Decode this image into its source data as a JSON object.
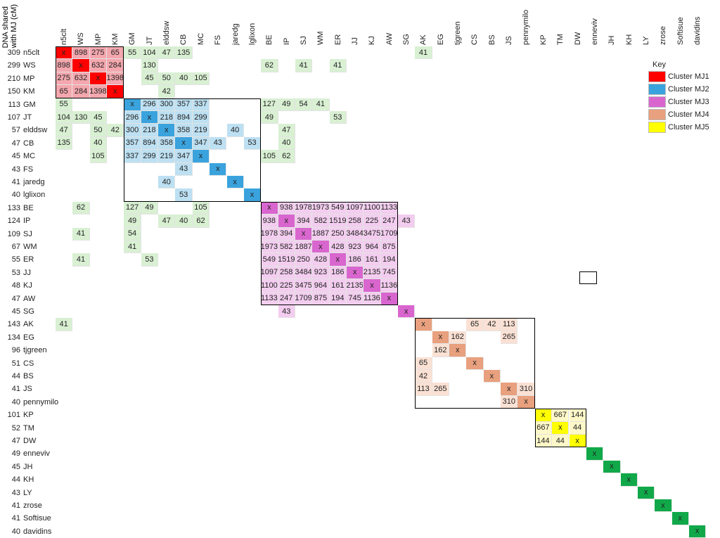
{
  "header_label": "DNA shared\nwith MJ (cM)",
  "columns": [
    "n5clt",
    "WS",
    "MP",
    "KM",
    "GM",
    "JT",
    "elddsw",
    "CB",
    "MC",
    "FS",
    "jaredg",
    "lglixon",
    "BE",
    "IP",
    "SJ",
    "WM",
    "ER",
    "JJ",
    "KJ",
    "AW",
    "SG",
    "AK",
    "EG",
    "tjgreen",
    "CS",
    "BS",
    "JS",
    "pennymilo",
    "KP",
    "TM",
    "DW",
    "enneviv",
    "JH",
    "KH",
    "LY",
    "zrose",
    "Softisue",
    "davidins"
  ],
  "rows": [
    {
      "cm": "309",
      "name": "n5clt"
    },
    {
      "cm": "299",
      "name": "WS"
    },
    {
      "cm": "210",
      "name": "MP"
    },
    {
      "cm": "150",
      "name": "KM"
    },
    {
      "cm": "113",
      "name": "GM"
    },
    {
      "cm": "107",
      "name": "JT"
    },
    {
      "cm": "57",
      "name": "elddsw"
    },
    {
      "cm": "47",
      "name": "CB"
    },
    {
      "cm": "45",
      "name": "MC"
    },
    {
      "cm": "43",
      "name": "FS"
    },
    {
      "cm": "41",
      "name": "jaredg"
    },
    {
      "cm": "40",
      "name": "lglixon"
    },
    {
      "cm": "133",
      "name": "BE"
    },
    {
      "cm": "124",
      "name": "IP"
    },
    {
      "cm": "109",
      "name": "SJ"
    },
    {
      "cm": "67",
      "name": "WM"
    },
    {
      "cm": "55",
      "name": "ER"
    },
    {
      "cm": "53",
      "name": "JJ"
    },
    {
      "cm": "48",
      "name": "KJ"
    },
    {
      "cm": "47",
      "name": "AW"
    },
    {
      "cm": "45",
      "name": "SG"
    },
    {
      "cm": "143",
      "name": "AK"
    },
    {
      "cm": "134",
      "name": "EG"
    },
    {
      "cm": "96",
      "name": "tjgreen"
    },
    {
      "cm": "51",
      "name": "CS"
    },
    {
      "cm": "44",
      "name": "BS"
    },
    {
      "cm": "41",
      "name": "JS"
    },
    {
      "cm": "40",
      "name": "pennymilo"
    },
    {
      "cm": "101",
      "name": "KP"
    },
    {
      "cm": "52",
      "name": "TM"
    },
    {
      "cm": "47",
      "name": "DW"
    },
    {
      "cm": "49",
      "name": "enneviv"
    },
    {
      "cm": "45",
      "name": "JH"
    },
    {
      "cm": "44",
      "name": "KH"
    },
    {
      "cm": "43",
      "name": "LY"
    },
    {
      "cm": "41",
      "name": "zrose"
    },
    {
      "cm": "41",
      "name": "Softisue"
    },
    {
      "cm": "40",
      "name": "davidins"
    }
  ],
  "colors": {
    "mj1_diag": "#ff0000",
    "mj1_fill": "#f4a7ae",
    "mj2_diag": "#3aa3dd",
    "mj2_fill": "#bde0f2",
    "mj3_diag": "#d966cf",
    "mj3_fill": "#f3cdef",
    "mj4_diag": "#e8a07e",
    "mj4_fill": "#fbe1d4",
    "mj5_diag": "#ffff00",
    "mj5_fill": "#fff8c8",
    "cross": "#d9f0d3",
    "solo_diag": "#11a84a"
  },
  "cells": [
    {
      "r": 0,
      "c": 0,
      "v": "x",
      "t": "mj1_diag"
    },
    {
      "r": 0,
      "c": 1,
      "v": "898",
      "t": "mj1_fill"
    },
    {
      "r": 0,
      "c": 2,
      "v": "275",
      "t": "mj1_fill"
    },
    {
      "r": 0,
      "c": 3,
      "v": "65",
      "t": "mj1_fill"
    },
    {
      "r": 0,
      "c": 4,
      "v": "55",
      "t": "cross"
    },
    {
      "r": 0,
      "c": 5,
      "v": "104",
      "t": "cross"
    },
    {
      "r": 0,
      "c": 6,
      "v": "47",
      "t": "cross"
    },
    {
      "r": 0,
      "c": 7,
      "v": "135",
      "t": "cross"
    },
    {
      "r": 0,
      "c": 21,
      "v": "41",
      "t": "cross"
    },
    {
      "r": 1,
      "c": 0,
      "v": "898",
      "t": "mj1_fill"
    },
    {
      "r": 1,
      "c": 1,
      "v": "x",
      "t": "mj1_diag"
    },
    {
      "r": 1,
      "c": 2,
      "v": "632",
      "t": "mj1_fill"
    },
    {
      "r": 1,
      "c": 3,
      "v": "284",
      "t": "mj1_fill"
    },
    {
      "r": 1,
      "c": 12,
      "v": "62",
      "t": "cross"
    },
    {
      "r": 1,
      "c": 14,
      "v": "41",
      "t": "cross"
    },
    {
      "r": 1,
      "c": 16,
      "v": "41",
      "t": "cross"
    },
    {
      "r": 2,
      "c": 0,
      "v": "275",
      "t": "mj1_fill"
    },
    {
      "r": 2,
      "c": 1,
      "v": "632",
      "t": "mj1_fill"
    },
    {
      "r": 2,
      "c": 2,
      "v": "x",
      "t": "mj1_diag"
    },
    {
      "r": 2,
      "c": 3,
      "v": "1398",
      "t": "mj1_fill"
    },
    {
      "r": 2,
      "c": 5,
      "v": "45",
      "t": "cross"
    },
    {
      "r": 2,
      "c": 6,
      "v": "50",
      "t": "cross"
    },
    {
      "r": 2,
      "c": 7,
      "v": "40",
      "t": "cross"
    },
    {
      "r": 2,
      "c": 8,
      "v": "105",
      "t": "cross"
    },
    {
      "r": 3,
      "c": 0,
      "v": "65",
      "t": "mj1_fill"
    },
    {
      "r": 3,
      "c": 1,
      "v": "284",
      "t": "mj1_fill"
    },
    {
      "r": 3,
      "c": 2,
      "v": "1398",
      "t": "mj1_fill"
    },
    {
      "r": 3,
      "c": 3,
      "v": "x",
      "t": "mj1_diag"
    },
    {
      "r": 3,
      "c": 6,
      "v": "42",
      "t": "cross"
    },
    {
      "r": 0,
      "c": 5,
      "v": "104",
      "t": "cross"
    },
    {
      "r": 1,
      "c": 5,
      "v": "130",
      "t": "cross"
    },
    {
      "r": 4,
      "c": 0,
      "v": "55",
      "t": "cross"
    },
    {
      "r": 4,
      "c": 4,
      "v": "x",
      "t": "mj2_diag"
    },
    {
      "r": 4,
      "c": 5,
      "v": "296",
      "t": "mj2_fill"
    },
    {
      "r": 4,
      "c": 6,
      "v": "300",
      "t": "mj2_fill"
    },
    {
      "r": 4,
      "c": 7,
      "v": "357",
      "t": "mj2_fill"
    },
    {
      "r": 4,
      "c": 8,
      "v": "337",
      "t": "mj2_fill"
    },
    {
      "r": 4,
      "c": 12,
      "v": "127",
      "t": "cross"
    },
    {
      "r": 4,
      "c": 13,
      "v": "49",
      "t": "cross"
    },
    {
      "r": 4,
      "c": 14,
      "v": "54",
      "t": "cross"
    },
    {
      "r": 4,
      "c": 15,
      "v": "41",
      "t": "cross"
    },
    {
      "r": 5,
      "c": 0,
      "v": "104",
      "t": "cross"
    },
    {
      "r": 5,
      "c": 1,
      "v": "130",
      "t": "cross"
    },
    {
      "r": 5,
      "c": 2,
      "v": "45",
      "t": "cross"
    },
    {
      "r": 5,
      "c": 4,
      "v": "296",
      "t": "mj2_fill"
    },
    {
      "r": 5,
      "c": 5,
      "v": "x",
      "t": "mj2_diag"
    },
    {
      "r": 5,
      "c": 6,
      "v": "218",
      "t": "mj2_fill"
    },
    {
      "r": 5,
      "c": 7,
      "v": "894",
      "t": "mj2_fill"
    },
    {
      "r": 5,
      "c": 8,
      "v": "299",
      "t": "mj2_fill"
    },
    {
      "r": 5,
      "c": 12,
      "v": "49",
      "t": "cross"
    },
    {
      "r": 5,
      "c": 16,
      "v": "53",
      "t": "cross"
    },
    {
      "r": 6,
      "c": 0,
      "v": "47",
      "t": "cross"
    },
    {
      "r": 6,
      "c": 2,
      "v": "50",
      "t": "cross"
    },
    {
      "r": 6,
      "c": 3,
      "v": "42",
      "t": "cross"
    },
    {
      "r": 6,
      "c": 4,
      "v": "300",
      "t": "mj2_fill"
    },
    {
      "r": 6,
      "c": 5,
      "v": "218",
      "t": "mj2_fill"
    },
    {
      "r": 6,
      "c": 6,
      "v": "x",
      "t": "mj2_diag"
    },
    {
      "r": 6,
      "c": 7,
      "v": "358",
      "t": "mj2_fill"
    },
    {
      "r": 6,
      "c": 8,
      "v": "219",
      "t": "mj2_fill"
    },
    {
      "r": 6,
      "c": 10,
      "v": "40",
      "t": "mj2_fill"
    },
    {
      "r": 6,
      "c": 13,
      "v": "47",
      "t": "cross"
    },
    {
      "r": 7,
      "c": 0,
      "v": "135",
      "t": "cross"
    },
    {
      "r": 7,
      "c": 2,
      "v": "40",
      "t": "cross"
    },
    {
      "r": 7,
      "c": 4,
      "v": "357",
      "t": "mj2_fill"
    },
    {
      "r": 7,
      "c": 5,
      "v": "894",
      "t": "mj2_fill"
    },
    {
      "r": 7,
      "c": 6,
      "v": "358",
      "t": "mj2_fill"
    },
    {
      "r": 7,
      "c": 7,
      "v": "x",
      "t": "mj2_diag"
    },
    {
      "r": 7,
      "c": 8,
      "v": "347",
      "t": "mj2_fill"
    },
    {
      "r": 7,
      "c": 9,
      "v": "43",
      "t": "mj2_fill"
    },
    {
      "r": 7,
      "c": 11,
      "v": "53",
      "t": "mj2_fill"
    },
    {
      "r": 7,
      "c": 13,
      "v": "40",
      "t": "cross"
    },
    {
      "r": 8,
      "c": 2,
      "v": "105",
      "t": "cross"
    },
    {
      "r": 8,
      "c": 4,
      "v": "337",
      "t": "mj2_fill"
    },
    {
      "r": 8,
      "c": 5,
      "v": "299",
      "t": "mj2_fill"
    },
    {
      "r": 8,
      "c": 6,
      "v": "219",
      "t": "mj2_fill"
    },
    {
      "r": 8,
      "c": 7,
      "v": "347",
      "t": "mj2_fill"
    },
    {
      "r": 8,
      "c": 8,
      "v": "x",
      "t": "mj2_diag"
    },
    {
      "r": 8,
      "c": 12,
      "v": "105",
      "t": "cross"
    },
    {
      "r": 8,
      "c": 13,
      "v": "62",
      "t": "cross"
    },
    {
      "r": 9,
      "c": 7,
      "v": "43",
      "t": "mj2_fill"
    },
    {
      "r": 9,
      "c": 9,
      "v": "x",
      "t": "mj2_diag"
    },
    {
      "r": 10,
      "c": 6,
      "v": "40",
      "t": "mj2_fill"
    },
    {
      "r": 10,
      "c": 10,
      "v": "x",
      "t": "mj2_diag"
    },
    {
      "r": 11,
      "c": 7,
      "v": "53",
      "t": "mj2_fill"
    },
    {
      "r": 11,
      "c": 11,
      "v": "x",
      "t": "mj2_diag"
    },
    {
      "r": 12,
      "c": 1,
      "v": "62",
      "t": "cross"
    },
    {
      "r": 12,
      "c": 4,
      "v": "127",
      "t": "cross"
    },
    {
      "r": 12,
      "c": 5,
      "v": "49",
      "t": "cross"
    },
    {
      "r": 12,
      "c": 8,
      "v": "105",
      "t": "cross"
    },
    {
      "r": 12,
      "c": 12,
      "v": "x",
      "t": "mj3_diag"
    },
    {
      "r": 12,
      "c": 13,
      "v": "938",
      "t": "mj3_fill"
    },
    {
      "r": 12,
      "c": 14,
      "v": "1978",
      "t": "mj3_fill"
    },
    {
      "r": 12,
      "c": 15,
      "v": "1973",
      "t": "mj3_fill"
    },
    {
      "r": 12,
      "c": 16,
      "v": "549",
      "t": "mj3_fill"
    },
    {
      "r": 12,
      "c": 17,
      "v": "1097",
      "t": "mj3_fill"
    },
    {
      "r": 12,
      "c": 18,
      "v": "1100",
      "t": "mj3_fill"
    },
    {
      "r": 12,
      "c": 19,
      "v": "1133",
      "t": "mj3_fill"
    },
    {
      "r": 13,
      "c": 4,
      "v": "49",
      "t": "cross"
    },
    {
      "r": 13,
      "c": 6,
      "v": "47",
      "t": "cross"
    },
    {
      "r": 13,
      "c": 7,
      "v": "40",
      "t": "cross"
    },
    {
      "r": 13,
      "c": 8,
      "v": "62",
      "t": "cross"
    },
    {
      "r": 13,
      "c": 12,
      "v": "938",
      "t": "mj3_fill"
    },
    {
      "r": 13,
      "c": 13,
      "v": "x",
      "t": "mj3_diag"
    },
    {
      "r": 13,
      "c": 14,
      "v": "394",
      "t": "mj3_fill"
    },
    {
      "r": 13,
      "c": 15,
      "v": "582",
      "t": "mj3_fill"
    },
    {
      "r": 13,
      "c": 16,
      "v": "1519",
      "t": "mj3_fill"
    },
    {
      "r": 13,
      "c": 17,
      "v": "258",
      "t": "mj3_fill"
    },
    {
      "r": 13,
      "c": 18,
      "v": "225",
      "t": "mj3_fill"
    },
    {
      "r": 13,
      "c": 19,
      "v": "247",
      "t": "mj3_fill"
    },
    {
      "r": 13,
      "c": 20,
      "v": "43",
      "t": "mj3_fill"
    },
    {
      "r": 14,
      "c": 1,
      "v": "41",
      "t": "cross"
    },
    {
      "r": 14,
      "c": 4,
      "v": "54",
      "t": "cross"
    },
    {
      "r": 14,
      "c": 12,
      "v": "1978",
      "t": "mj3_fill"
    },
    {
      "r": 14,
      "c": 13,
      "v": "394",
      "t": "mj3_fill"
    },
    {
      "r": 14,
      "c": 14,
      "v": "x",
      "t": "mj3_diag"
    },
    {
      "r": 14,
      "c": 15,
      "v": "1887",
      "t": "mj3_fill"
    },
    {
      "r": 14,
      "c": 16,
      "v": "250",
      "t": "mj3_fill"
    },
    {
      "r": 14,
      "c": 17,
      "v": "3484",
      "t": "mj3_fill"
    },
    {
      "r": 14,
      "c": 18,
      "v": "3475",
      "t": "mj3_fill"
    },
    {
      "r": 14,
      "c": 19,
      "v": "1709",
      "t": "mj3_fill"
    },
    {
      "r": 15,
      "c": 4,
      "v": "41",
      "t": "cross"
    },
    {
      "r": 15,
      "c": 12,
      "v": "1973",
      "t": "mj3_fill"
    },
    {
      "r": 15,
      "c": 13,
      "v": "582",
      "t": "mj3_fill"
    },
    {
      "r": 15,
      "c": 14,
      "v": "1887",
      "t": "mj3_fill"
    },
    {
      "r": 15,
      "c": 15,
      "v": "x",
      "t": "mj3_diag"
    },
    {
      "r": 15,
      "c": 16,
      "v": "428",
      "t": "mj3_fill"
    },
    {
      "r": 15,
      "c": 17,
      "v": "923",
      "t": "mj3_fill"
    },
    {
      "r": 15,
      "c": 18,
      "v": "964",
      "t": "mj3_fill"
    },
    {
      "r": 15,
      "c": 19,
      "v": "875",
      "t": "mj3_fill"
    },
    {
      "r": 16,
      "c": 1,
      "v": "41",
      "t": "cross"
    },
    {
      "r": 16,
      "c": 5,
      "v": "53",
      "t": "cross"
    },
    {
      "r": 16,
      "c": 12,
      "v": "549",
      "t": "mj3_fill"
    },
    {
      "r": 16,
      "c": 13,
      "v": "1519",
      "t": "mj3_fill"
    },
    {
      "r": 16,
      "c": 14,
      "v": "250",
      "t": "mj3_fill"
    },
    {
      "r": 16,
      "c": 15,
      "v": "428",
      "t": "mj3_fill"
    },
    {
      "r": 16,
      "c": 16,
      "v": "x",
      "t": "mj3_diag"
    },
    {
      "r": 16,
      "c": 17,
      "v": "186",
      "t": "mj3_fill"
    },
    {
      "r": 16,
      "c": 18,
      "v": "161",
      "t": "mj3_fill"
    },
    {
      "r": 16,
      "c": 19,
      "v": "194",
      "t": "mj3_fill"
    },
    {
      "r": 17,
      "c": 12,
      "v": "1097",
      "t": "mj3_fill"
    },
    {
      "r": 17,
      "c": 13,
      "v": "258",
      "t": "mj3_fill"
    },
    {
      "r": 17,
      "c": 14,
      "v": "3484",
      "t": "mj3_fill"
    },
    {
      "r": 17,
      "c": 15,
      "v": "923",
      "t": "mj3_fill"
    },
    {
      "r": 17,
      "c": 16,
      "v": "186",
      "t": "mj3_fill"
    },
    {
      "r": 17,
      "c": 17,
      "v": "x",
      "t": "mj3_diag"
    },
    {
      "r": 17,
      "c": 18,
      "v": "2135",
      "t": "mj3_fill"
    },
    {
      "r": 17,
      "c": 19,
      "v": "745",
      "t": "mj3_fill"
    },
    {
      "r": 18,
      "c": 12,
      "v": "1100",
      "t": "mj3_fill"
    },
    {
      "r": 18,
      "c": 13,
      "v": "225",
      "t": "mj3_fill"
    },
    {
      "r": 18,
      "c": 14,
      "v": "3475",
      "t": "mj3_fill"
    },
    {
      "r": 18,
      "c": 15,
      "v": "964",
      "t": "mj3_fill"
    },
    {
      "r": 18,
      "c": 16,
      "v": "161",
      "t": "mj3_fill"
    },
    {
      "r": 18,
      "c": 17,
      "v": "2135",
      "t": "mj3_fill"
    },
    {
      "r": 18,
      "c": 18,
      "v": "x",
      "t": "mj3_diag"
    },
    {
      "r": 18,
      "c": 19,
      "v": "1136",
      "t": "mj3_fill"
    },
    {
      "r": 19,
      "c": 12,
      "v": "1133",
      "t": "mj3_fill"
    },
    {
      "r": 19,
      "c": 13,
      "v": "247",
      "t": "mj3_fill"
    },
    {
      "r": 19,
      "c": 14,
      "v": "1709",
      "t": "mj3_fill"
    },
    {
      "r": 19,
      "c": 15,
      "v": "875",
      "t": "mj3_fill"
    },
    {
      "r": 19,
      "c": 16,
      "v": "194",
      "t": "mj3_fill"
    },
    {
      "r": 19,
      "c": 17,
      "v": "745",
      "t": "mj3_fill"
    },
    {
      "r": 19,
      "c": 18,
      "v": "1136",
      "t": "mj3_fill"
    },
    {
      "r": 19,
      "c": 19,
      "v": "x",
      "t": "mj3_diag"
    },
    {
      "r": 20,
      "c": 13,
      "v": "43",
      "t": "mj3_fill"
    },
    {
      "r": 20,
      "c": 20,
      "v": "x",
      "t": "mj3_diag"
    },
    {
      "r": 21,
      "c": 0,
      "v": "41",
      "t": "cross"
    },
    {
      "r": 21,
      "c": 21,
      "v": "x",
      "t": "mj4_diag"
    },
    {
      "r": 21,
      "c": 24,
      "v": "65",
      "t": "mj4_fill"
    },
    {
      "r": 21,
      "c": 25,
      "v": "42",
      "t": "mj4_fill"
    },
    {
      "r": 21,
      "c": 26,
      "v": "113",
      "t": "mj4_fill"
    },
    {
      "r": 22,
      "c": 22,
      "v": "x",
      "t": "mj4_diag"
    },
    {
      "r": 22,
      "c": 23,
      "v": "162",
      "t": "mj4_fill"
    },
    {
      "r": 22,
      "c": 26,
      "v": "265",
      "t": "mj4_fill"
    },
    {
      "r": 23,
      "c": 22,
      "v": "162",
      "t": "mj4_fill"
    },
    {
      "r": 23,
      "c": 23,
      "v": "x",
      "t": "mj4_diag"
    },
    {
      "r": 24,
      "c": 21,
      "v": "65",
      "t": "mj4_fill"
    },
    {
      "r": 24,
      "c": 24,
      "v": "x",
      "t": "mj4_diag"
    },
    {
      "r": 25,
      "c": 21,
      "v": "42",
      "t": "mj4_fill"
    },
    {
      "r": 25,
      "c": 25,
      "v": "x",
      "t": "mj4_diag"
    },
    {
      "r": 26,
      "c": 21,
      "v": "113",
      "t": "mj4_fill"
    },
    {
      "r": 26,
      "c": 22,
      "v": "265",
      "t": "mj4_fill"
    },
    {
      "r": 26,
      "c": 26,
      "v": "x",
      "t": "mj4_diag"
    },
    {
      "r": 26,
      "c": 27,
      "v": "310",
      "t": "mj4_fill"
    },
    {
      "r": 27,
      "c": 26,
      "v": "310",
      "t": "mj4_fill"
    },
    {
      "r": 27,
      "c": 27,
      "v": "x",
      "t": "mj4_diag"
    },
    {
      "r": 28,
      "c": 28,
      "v": "x",
      "t": "mj5_diag"
    },
    {
      "r": 28,
      "c": 29,
      "v": "667",
      "t": "mj5_fill"
    },
    {
      "r": 28,
      "c": 30,
      "v": "144",
      "t": "mj5_fill"
    },
    {
      "r": 29,
      "c": 28,
      "v": "667",
      "t": "mj5_fill"
    },
    {
      "r": 29,
      "c": 29,
      "v": "x",
      "t": "mj5_diag"
    },
    {
      "r": 29,
      "c": 30,
      "v": "44",
      "t": "mj5_fill"
    },
    {
      "r": 30,
      "c": 28,
      "v": "144",
      "t": "mj5_fill"
    },
    {
      "r": 30,
      "c": 29,
      "v": "44",
      "t": "mj5_fill"
    },
    {
      "r": 30,
      "c": 30,
      "v": "x",
      "t": "mj5_diag"
    },
    {
      "r": 31,
      "c": 31,
      "v": "x",
      "t": "solo_diag"
    },
    {
      "r": 32,
      "c": 32,
      "v": "x",
      "t": "solo_diag"
    },
    {
      "r": 33,
      "c": 33,
      "v": "x",
      "t": "solo_diag"
    },
    {
      "r": 34,
      "c": 34,
      "v": "x",
      "t": "solo_diag"
    },
    {
      "r": 35,
      "c": 35,
      "v": "x",
      "t": "solo_diag"
    },
    {
      "r": 36,
      "c": 36,
      "v": "x",
      "t": "solo_diag"
    },
    {
      "r": 37,
      "c": 37,
      "v": "x",
      "t": "solo_diag"
    }
  ],
  "clusters": [
    {
      "from": 0,
      "to": 3
    },
    {
      "from": 4,
      "to": 11
    },
    {
      "from": 12,
      "to": 19
    },
    {
      "from": 21,
      "to": 27
    },
    {
      "from": 28,
      "to": 30
    }
  ],
  "key": {
    "title": "Key",
    "items": [
      {
        "label": "Cluster MJ1",
        "color": "#ff0000"
      },
      {
        "label": "Cluster MJ2",
        "color": "#3aa3dd"
      },
      {
        "label": "Cluster MJ3",
        "color": "#d966cf"
      },
      {
        "label": "Cluster MJ4",
        "color": "#e8a07e"
      },
      {
        "label": "Cluster MJ5",
        "color": "#ffff00"
      }
    ]
  }
}
